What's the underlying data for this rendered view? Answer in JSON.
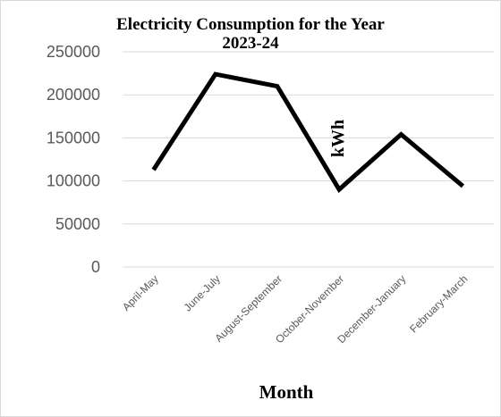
{
  "chart_data": {
    "type": "line",
    "title": "Electricity Consumption for the Year 2023-24",
    "title_lines": [
      "Electricity Consumption for the Year",
      "2023-24"
    ],
    "xlabel": "Month",
    "ylabel": "kWh",
    "categories": [
      "April-May",
      "June-July",
      "August-September",
      "October-November",
      "December-January",
      "February-March"
    ],
    "series": [
      {
        "values": [
          113000,
          224000,
          210000,
          90000,
          154000,
          94000
        ],
        "color": "#000000"
      }
    ],
    "ylim": [
      0,
      250000
    ],
    "yticks": [
      0,
      50000,
      100000,
      150000,
      200000,
      250000
    ],
    "ytick_labels": [
      "0",
      "50000",
      "100000",
      "150000",
      "200000",
      "250000"
    ],
    "grid": true,
    "legend": "none",
    "gridline_color": "#d9d9d9",
    "tick_color": "#595959"
  }
}
